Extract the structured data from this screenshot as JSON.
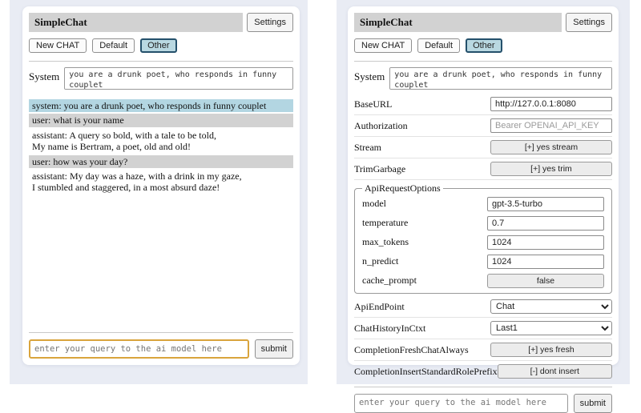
{
  "header": {
    "title": "SimpleChat",
    "settings_label": "Settings",
    "new_chat_label": "New CHAT",
    "chat_default_label": "Default",
    "chat_other_label": "Other",
    "active_chat": "Other"
  },
  "system_prompt": {
    "label": "System",
    "value": "you are a drunk poet, who responds in funny couplet"
  },
  "chat": {
    "messages": [
      {
        "role": "system",
        "text": "system: you are a drunk poet, who responds in funny couplet"
      },
      {
        "role": "user",
        "text": "user: what is your name"
      },
      {
        "role": "assistant",
        "text": "assistant: A query so bold, with a tale to be told,\nMy name is Bertram, a poet, old and old!"
      },
      {
        "role": "user",
        "text": "user: how was your day?"
      },
      {
        "role": "assistant",
        "text": "assistant: My day was a haze, with a drink in my gaze,\nI stumbled and staggered, in a most absurd daze!"
      }
    ]
  },
  "query": {
    "placeholder": "enter your query to the ai model here",
    "submit_label": "submit"
  },
  "settings": {
    "rows_top": [
      {
        "label": "BaseURL",
        "type": "input",
        "value": "http://127.0.0.1:8080",
        "placeholder": ""
      },
      {
        "label": "Authorization",
        "type": "input",
        "value": "",
        "placeholder": "Bearer OPENAI_API_KEY"
      },
      {
        "label": "Stream",
        "type": "button",
        "value": "[+] yes stream"
      },
      {
        "label": "TrimGarbage",
        "type": "button",
        "value": "[+] yes trim"
      }
    ],
    "fieldset": {
      "legend": "ApiRequestOptions",
      "rows": [
        {
          "label": "model",
          "type": "input",
          "value": "gpt-3.5-turbo"
        },
        {
          "label": "temperature",
          "type": "input",
          "value": "0.7"
        },
        {
          "label": "max_tokens",
          "type": "input",
          "value": "1024"
        },
        {
          "label": "n_predict",
          "type": "input",
          "value": "1024"
        },
        {
          "label": "cache_prompt",
          "type": "button",
          "value": "false"
        }
      ]
    },
    "rows_bottom": [
      {
        "label": "ApiEndPoint",
        "type": "select",
        "value": "Chat"
      },
      {
        "label": "ChatHistoryInCtxt",
        "type": "select",
        "value": "Last1"
      },
      {
        "label": "CompletionFreshChatAlways",
        "type": "button",
        "value": "[+] yes fresh"
      },
      {
        "label": "CompletionInsertStandardRolePrefix",
        "type": "button",
        "value": "[-] dont insert"
      }
    ]
  },
  "colors": {
    "selected_tab_bg": "#b9d8e1",
    "selected_tab_border": "#24506b",
    "system_msg_bg": "#b3d6e2",
    "user_msg_bg": "#d2d2d2",
    "titlebar_bg": "#d2d2d2",
    "focused_query_border": "#d9a43c",
    "page_tile_bg": "#e9ecf4"
  }
}
